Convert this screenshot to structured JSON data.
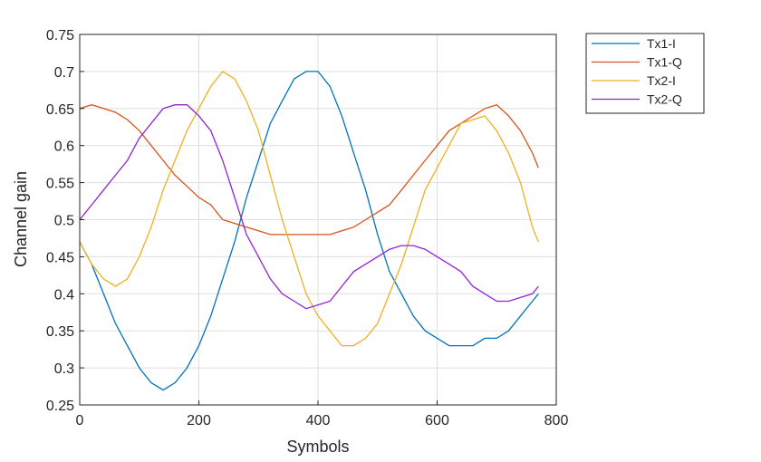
{
  "chart_data": {
    "type": "line",
    "title": "",
    "xlabel": "Symbols",
    "ylabel": "Channel gain",
    "xlim": [
      0,
      800
    ],
    "ylim": [
      0.25,
      0.75
    ],
    "xticks": [
      "0",
      "200",
      "400",
      "600",
      "800"
    ],
    "yticks": [
      "0.25",
      "0.3",
      "0.35",
      "0.4",
      "0.45",
      "0.5",
      "0.55",
      "0.6",
      "0.65",
      "0.7",
      "0.75"
    ],
    "grid": true,
    "legend_position": "outside-top-right",
    "x": [
      0,
      20,
      40,
      60,
      80,
      100,
      120,
      140,
      160,
      180,
      200,
      220,
      240,
      260,
      280,
      300,
      320,
      340,
      360,
      380,
      400,
      420,
      440,
      460,
      480,
      500,
      520,
      540,
      560,
      580,
      600,
      620,
      640,
      660,
      680,
      700,
      720,
      740,
      760,
      770
    ],
    "series": [
      {
        "name": "Tx1-I",
        "color": "#0072BD",
        "values": [
          0.47,
          0.44,
          0.4,
          0.36,
          0.33,
          0.3,
          0.28,
          0.27,
          0.28,
          0.3,
          0.33,
          0.37,
          0.42,
          0.47,
          0.53,
          0.58,
          0.63,
          0.66,
          0.69,
          0.7,
          0.7,
          0.68,
          0.64,
          0.59,
          0.54,
          0.48,
          0.43,
          0.4,
          0.37,
          0.35,
          0.34,
          0.33,
          0.33,
          0.33,
          0.34,
          0.34,
          0.35,
          0.37,
          0.39,
          0.4
        ]
      },
      {
        "name": "Tx1-Q",
        "color": "#D95319",
        "values": [
          0.65,
          0.655,
          0.65,
          0.645,
          0.635,
          0.62,
          0.6,
          0.58,
          0.56,
          0.545,
          0.53,
          0.52,
          0.5,
          0.495,
          0.49,
          0.485,
          0.48,
          0.48,
          0.48,
          0.48,
          0.48,
          0.48,
          0.485,
          0.49,
          0.5,
          0.51,
          0.52,
          0.54,
          0.56,
          0.58,
          0.6,
          0.62,
          0.63,
          0.64,
          0.65,
          0.655,
          0.64,
          0.62,
          0.59,
          0.57
        ]
      },
      {
        "name": "Tx2-I",
        "color": "#EDB120",
        "values": [
          0.47,
          0.44,
          0.42,
          0.41,
          0.42,
          0.45,
          0.49,
          0.54,
          0.58,
          0.62,
          0.65,
          0.68,
          0.7,
          0.69,
          0.66,
          0.62,
          0.56,
          0.5,
          0.45,
          0.4,
          0.37,
          0.35,
          0.33,
          0.33,
          0.34,
          0.36,
          0.4,
          0.44,
          0.49,
          0.54,
          0.57,
          0.6,
          0.63,
          0.635,
          0.64,
          0.62,
          0.59,
          0.55,
          0.49,
          0.47
        ]
      },
      {
        "name": "Tx2-Q",
        "color": "#8E24D6",
        "values": [
          0.5,
          0.52,
          0.54,
          0.56,
          0.58,
          0.61,
          0.63,
          0.65,
          0.655,
          0.655,
          0.64,
          0.62,
          0.58,
          0.53,
          0.48,
          0.45,
          0.42,
          0.4,
          0.39,
          0.38,
          0.385,
          0.39,
          0.41,
          0.43,
          0.44,
          0.45,
          0.46,
          0.465,
          0.465,
          0.46,
          0.45,
          0.44,
          0.43,
          0.41,
          0.4,
          0.39,
          0.39,
          0.395,
          0.4,
          0.41
        ]
      }
    ]
  }
}
